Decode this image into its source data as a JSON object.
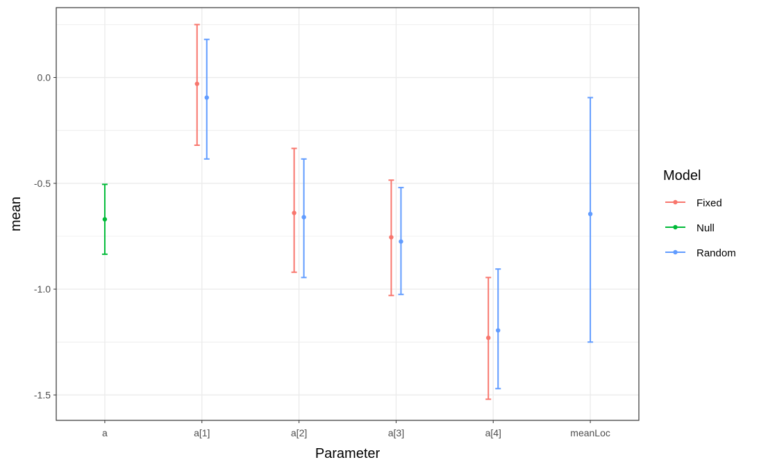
{
  "chart_data": {
    "type": "errorbar",
    "xlabel": "Parameter",
    "ylabel": "mean",
    "categories": [
      "a",
      "a[1]",
      "a[2]",
      "a[3]",
      "a[4]",
      "meanLoc"
    ],
    "ylim": [
      -1.62,
      0.33
    ],
    "yticks": [
      0.0,
      -0.5,
      -1.0,
      -1.5
    ],
    "ytick_labels": [
      "0.0",
      "-0.5",
      "-1.0",
      "-1.5"
    ],
    "grid": true,
    "legend": {
      "title": "Model",
      "position": "right"
    },
    "series": [
      {
        "name": "Fixed",
        "color": "#F8766D",
        "points": [
          {
            "category": "a[1]",
            "mean": -0.03,
            "lower": -0.32,
            "upper": 0.25
          },
          {
            "category": "a[2]",
            "mean": -0.64,
            "lower": -0.92,
            "upper": -0.335
          },
          {
            "category": "a[3]",
            "mean": -0.755,
            "lower": -1.03,
            "upper": -0.485
          },
          {
            "category": "a[4]",
            "mean": -1.23,
            "lower": -1.52,
            "upper": -0.945
          }
        ]
      },
      {
        "name": "Null",
        "color": "#00BA38",
        "points": [
          {
            "category": "a",
            "mean": -0.67,
            "lower": -0.835,
            "upper": -0.505
          }
        ]
      },
      {
        "name": "Random",
        "color": "#619CFF",
        "points": [
          {
            "category": "a[1]",
            "mean": -0.095,
            "lower": -0.385,
            "upper": 0.18
          },
          {
            "category": "a[2]",
            "mean": -0.66,
            "lower": -0.945,
            "upper": -0.385
          },
          {
            "category": "a[3]",
            "mean": -0.775,
            "lower": -1.025,
            "upper": -0.52
          },
          {
            "category": "a[4]",
            "mean": -1.195,
            "lower": -1.47,
            "upper": -0.905
          },
          {
            "category": "meanLoc",
            "mean": -0.645,
            "lower": -1.25,
            "upper": -0.095
          }
        ]
      }
    ]
  }
}
